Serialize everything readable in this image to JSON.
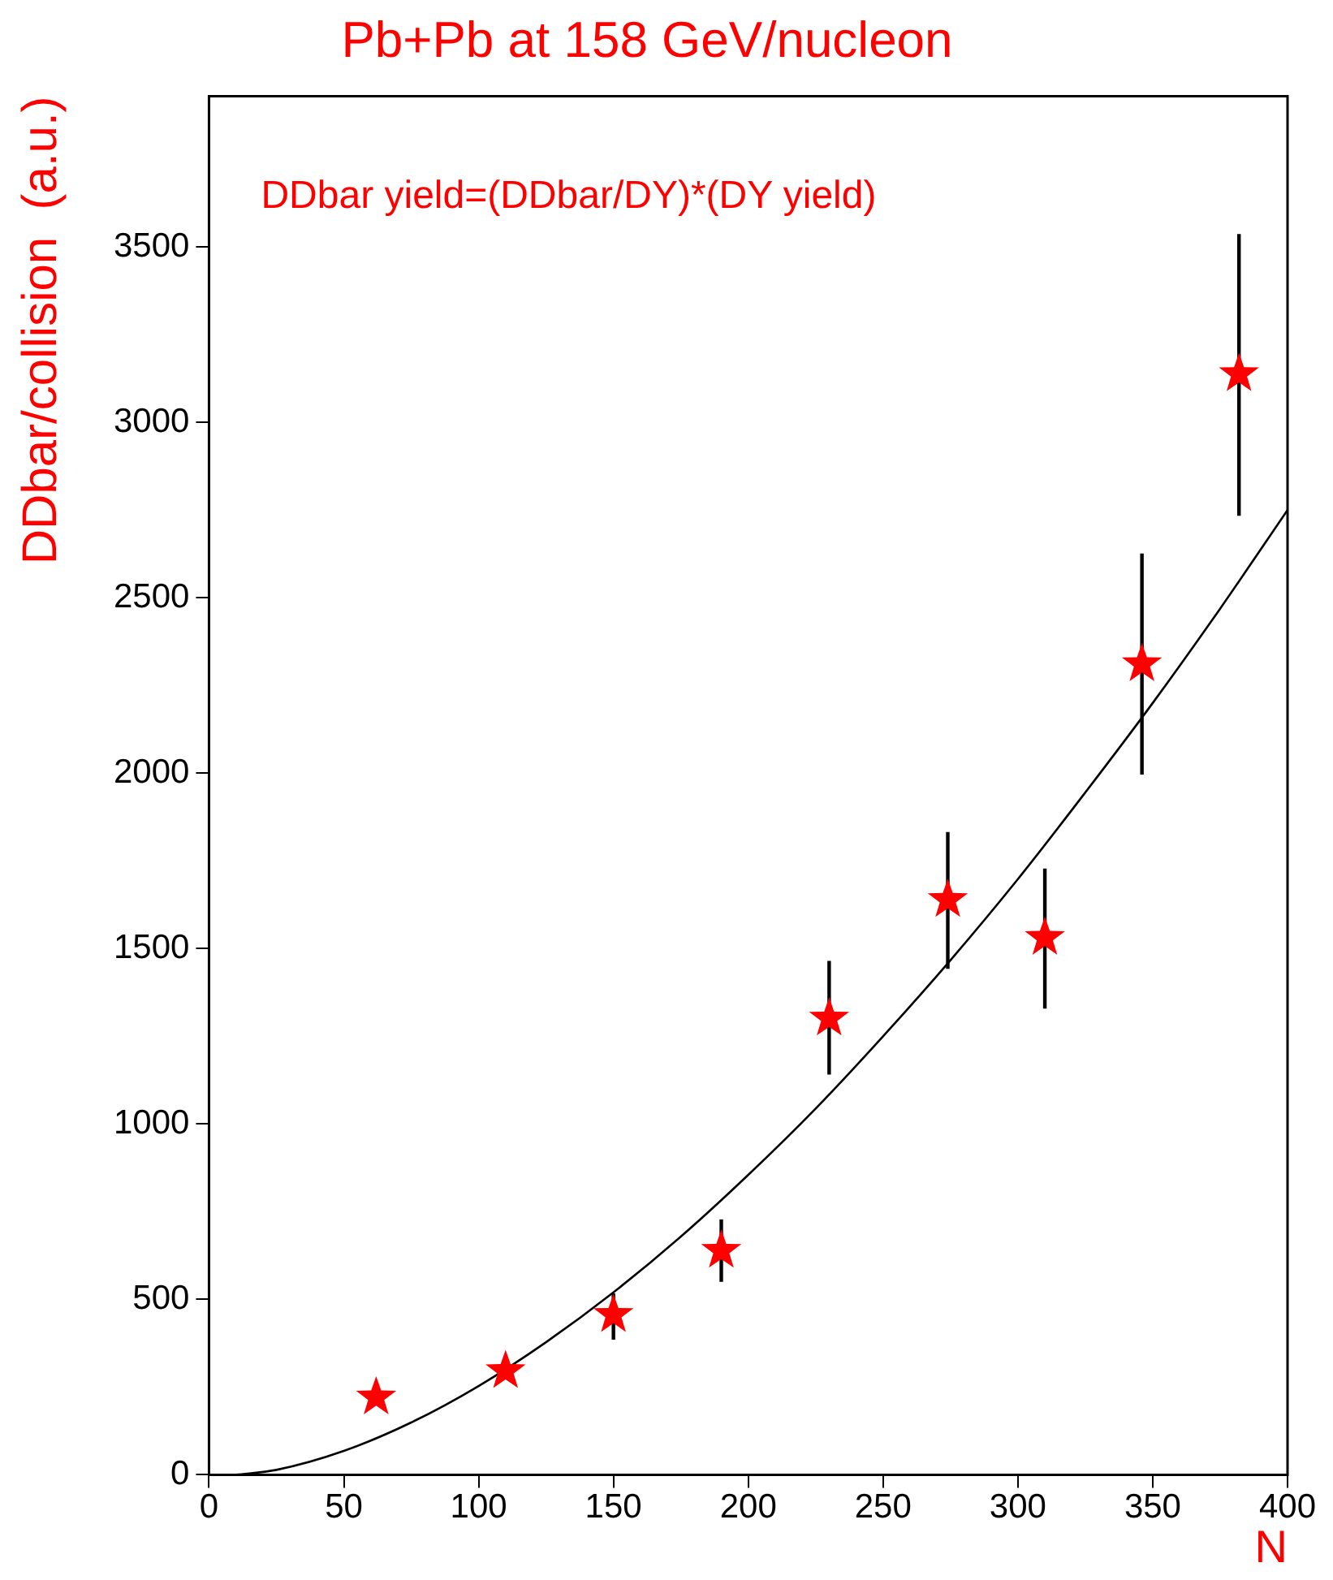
{
  "chart_data": {
    "type": "scatter",
    "title": "Pb+Pb at 158 GeV/nucleon",
    "xlabel": "N",
    "ylabel": "DDbar/collision  (a.u.)",
    "annotations": [
      "DDbar yield=(DDbar/DY)*(DY yield)"
    ],
    "xlim": [
      0,
      400
    ],
    "xticks": [
      0,
      50,
      100,
      150,
      200,
      250,
      300,
      350,
      400
    ],
    "ylim": [
      0,
      3930
    ],
    "yticks": [
      0,
      500,
      1000,
      1500,
      2000,
      2500,
      3000,
      3500
    ],
    "grid": false,
    "legend": false,
    "series": [
      {
        "color": "#ff0000",
        "marker": "star",
        "x": [
          62,
          110,
          150,
          190,
          230,
          274,
          310,
          346,
          382
        ],
        "values": [
          221,
          296,
          456,
          639,
          1301,
          1639,
          1531,
          2311,
          3138
        ],
        "errors": [
          null,
          null,
          [
            385,
            517
          ],
          [
            550,
            728
          ],
          [
            1141,
            1465
          ],
          [
            1442,
            1832
          ],
          [
            1329,
            1728
          ],
          [
            1996,
            2626
          ],
          [
            2734,
            3537
          ]
        ]
      },
      {
        "type": "line",
        "color": "#000000",
        "marker": "none",
        "x": [
          10,
          25,
          50,
          75,
          100,
          125,
          150,
          175,
          200,
          225,
          250,
          275,
          300,
          325,
          350,
          375,
          400
        ],
        "values": [
          0,
          14,
          68,
          149,
          253,
          378,
          520,
          679,
          855,
          1044,
          1250,
          1467,
          1698,
          1945,
          2200,
          2469,
          2750
        ]
      }
    ]
  }
}
